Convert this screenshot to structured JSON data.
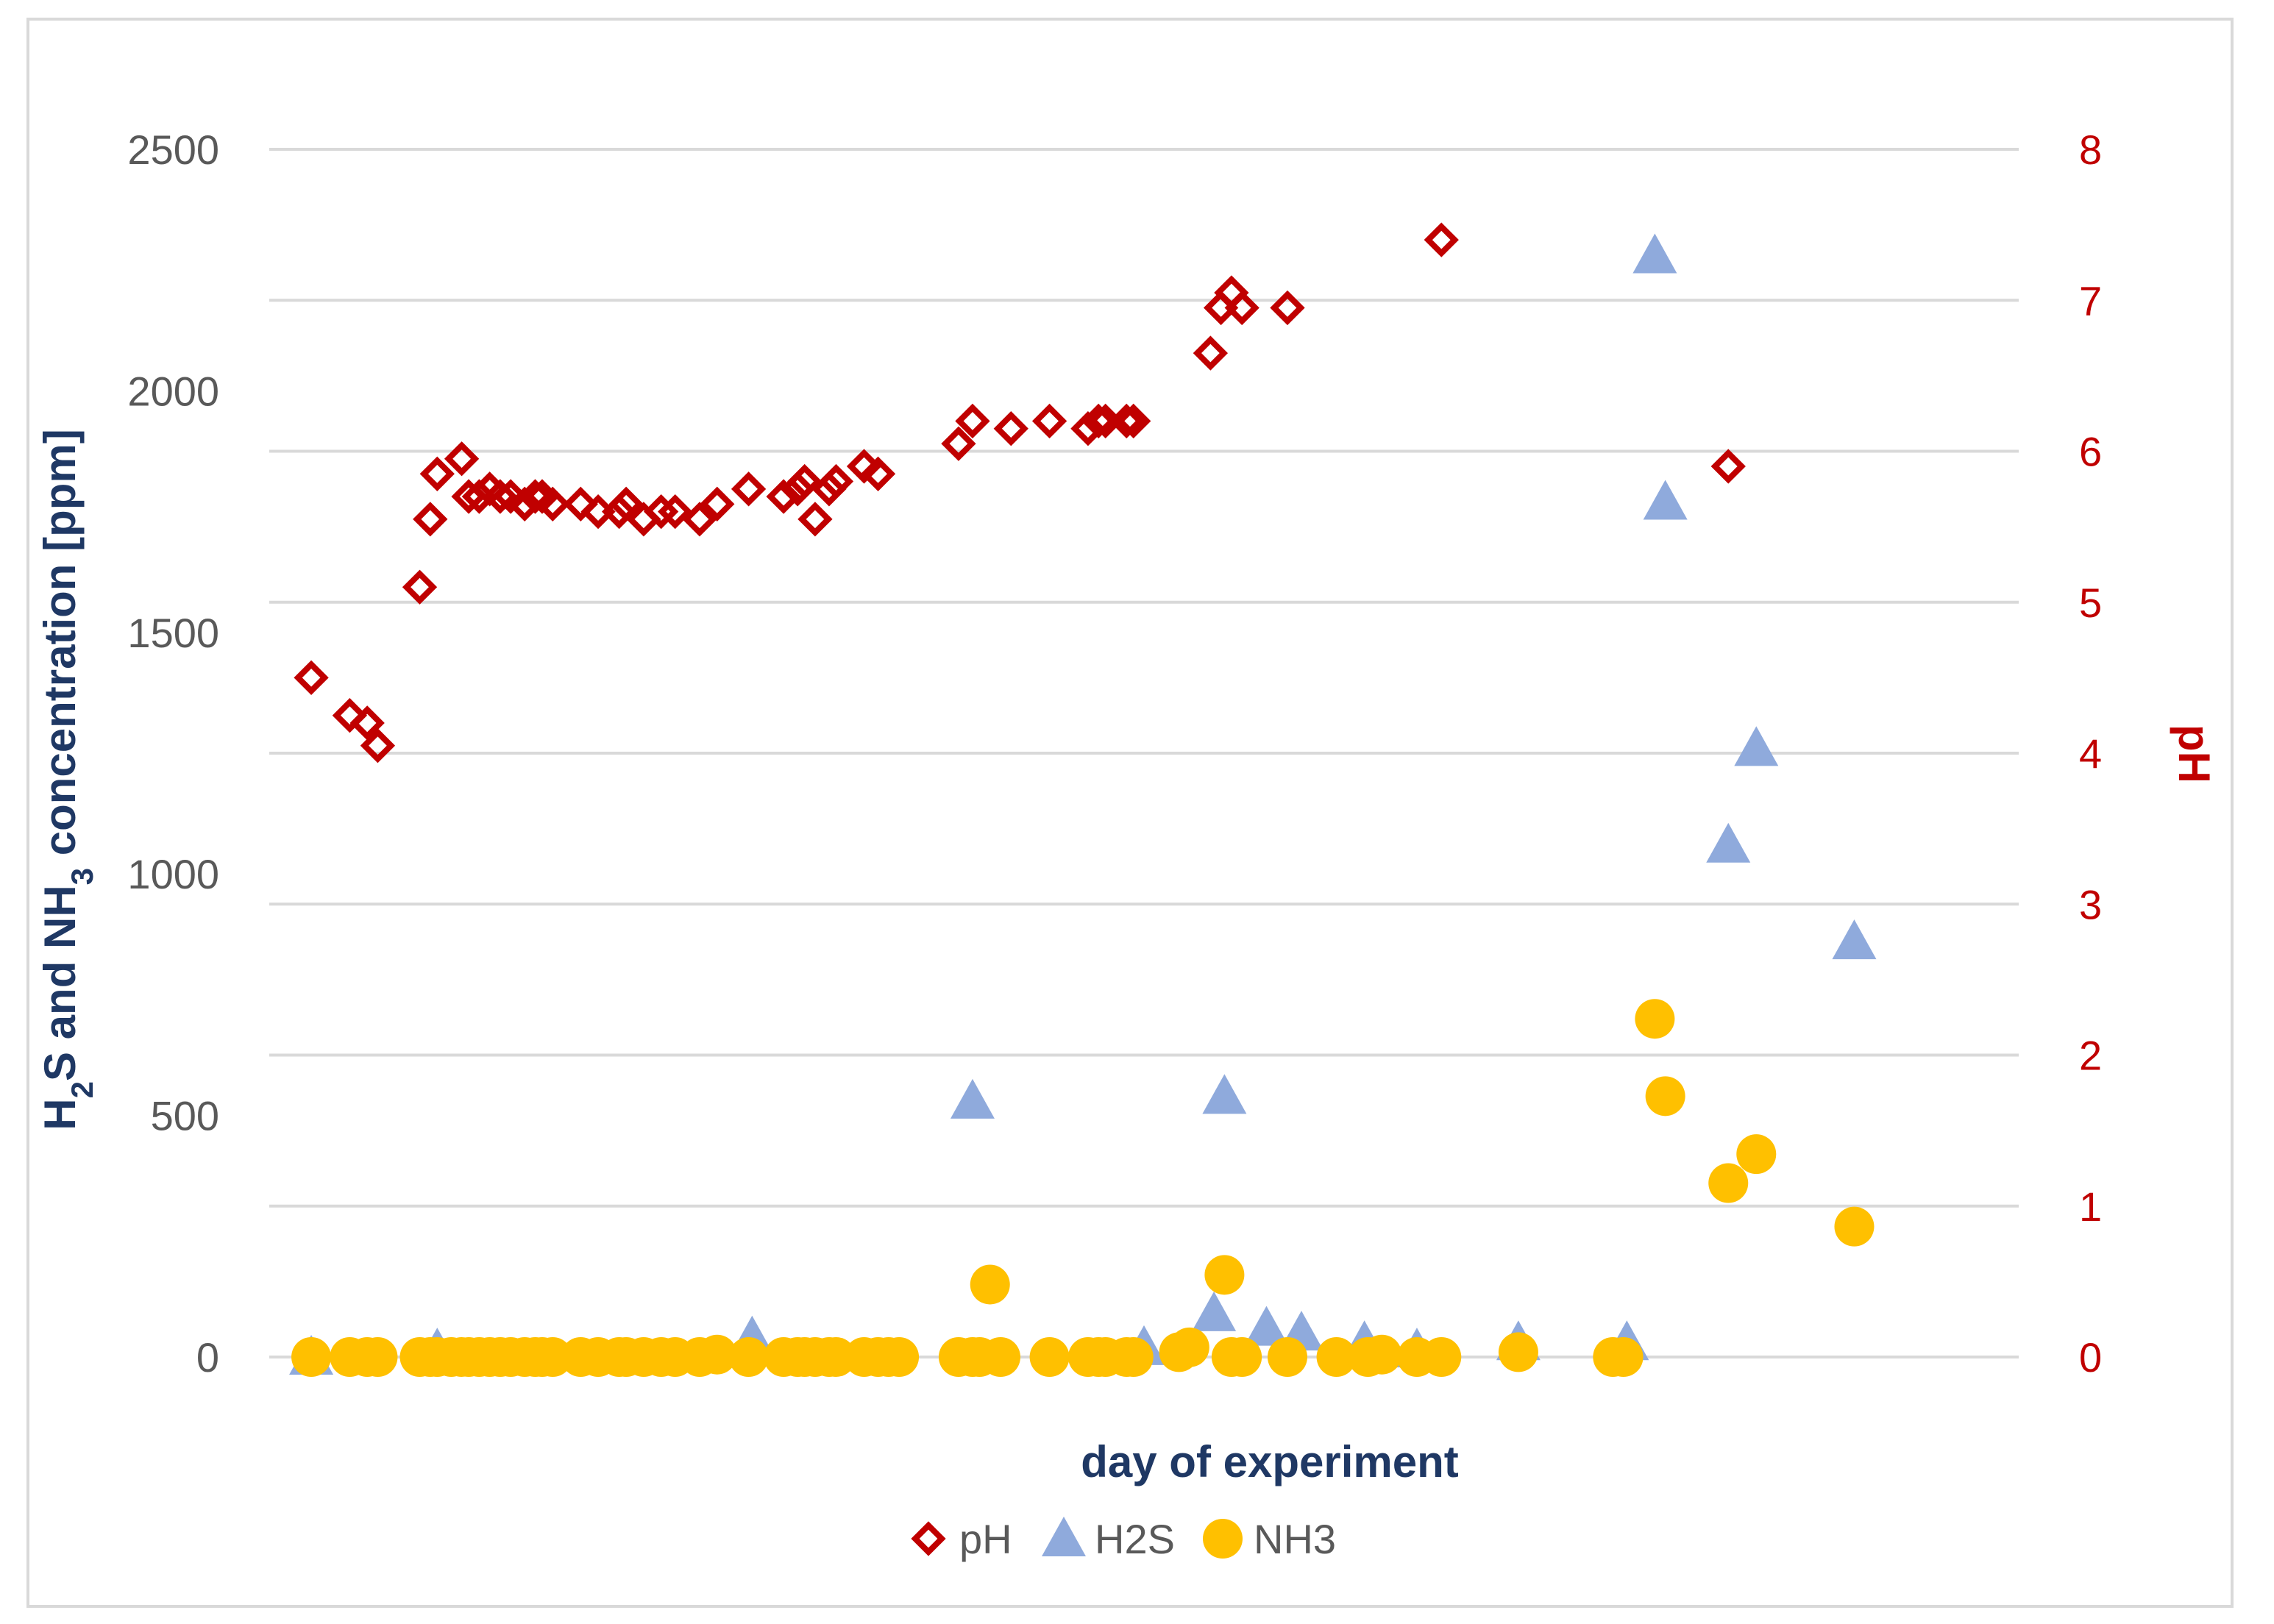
{
  "chart_data": {
    "type": "scatter",
    "title": "",
    "xlabel": "day of experiment",
    "ylabel_left": "H2S and NH3 concentration [ppm]",
    "ylabel_left_parts": {
      "a": "H",
      "a_sub": "2",
      "b": "S and NH",
      "b_sub": "3",
      "c": " concentration [ppm]"
    },
    "ylabel_right": "pH",
    "ylim_left": [
      0,
      2500
    ],
    "ylim_right": [
      0,
      8
    ],
    "yticks_left": [
      "0",
      "500",
      "1000",
      "1500",
      "2000",
      "2500"
    ],
    "yticks_right": [
      "0",
      "1",
      "2",
      "3",
      "4",
      "5",
      "6",
      "7",
      "8"
    ],
    "xlim": [
      0,
      100
    ],
    "grid": true,
    "legend_position": "bottom",
    "colors": {
      "pH": "#c00000",
      "H2S": "#8faadc",
      "NH3": "#ffc000",
      "grid": "#d9d9d9"
    },
    "series": [
      {
        "name": "pH",
        "axis": "right",
        "marker": "diamond-open",
        "x": [
          2.4,
          4.6,
          5.6,
          6.2,
          8.6,
          9.2,
          9.6,
          11.0,
          11.4,
          12.0,
          12.6,
          13.2,
          13.8,
          14.6,
          15.2,
          15.6,
          16.2,
          17.8,
          18.8,
          20.0,
          20.4,
          21.4,
          22.4,
          23.2,
          24.6,
          25.6,
          27.4,
          29.4,
          30.2,
          30.6,
          31.2,
          32.0,
          32.4,
          34.0,
          34.8,
          39.4,
          40.2,
          42.4,
          44.6,
          46.8,
          47.4,
          47.8,
          49.0,
          49.4,
          53.8,
          54.4,
          55.0,
          55.6,
          58.2,
          67.0,
          83.4
        ],
        "y": [
          4.5,
          4.25,
          4.2,
          4.05,
          5.1,
          5.55,
          5.85,
          5.95,
          5.7,
          5.7,
          5.75,
          5.7,
          5.7,
          5.65,
          5.7,
          5.7,
          5.65,
          5.65,
          5.6,
          5.6,
          5.65,
          5.55,
          5.6,
          5.6,
          5.55,
          5.65,
          5.75,
          5.7,
          5.75,
          5.8,
          5.55,
          5.75,
          5.8,
          5.9,
          5.85,
          6.05,
          6.2,
          6.15,
          6.2,
          6.15,
          6.2,
          6.2,
          6.2,
          6.2,
          6.65,
          6.95,
          7.05,
          6.95,
          6.95,
          7.4,
          5.9
        ]
      },
      {
        "name": "H2S",
        "axis": "left",
        "marker": "triangle",
        "x": [
          2.4,
          9.6,
          27.6,
          40.2,
          50.0,
          54.6,
          54.0,
          57.0,
          59.0,
          62.6,
          65.6,
          71.4,
          77.6,
          79.2,
          79.8,
          83.4,
          85.0,
          90.6
        ],
        "y": [
          0,
          15,
          40,
          530,
          20,
          540,
          90,
          60,
          50,
          30,
          15,
          30,
          30,
          2280,
          1770,
          1060,
          1260,
          860
        ]
      },
      {
        "name": "NH3",
        "axis": "left",
        "marker": "circle",
        "x": [
          2.4,
          4.6,
          5.6,
          6.2,
          8.6,
          9.2,
          9.6,
          10.4,
          11.0,
          11.4,
          12.0,
          12.6,
          13.2,
          13.8,
          14.6,
          15.2,
          15.6,
          16.2,
          17.8,
          18.8,
          20.0,
          20.4,
          21.4,
          22.4,
          23.2,
          24.6,
          25.6,
          27.4,
          29.4,
          30.2,
          30.6,
          31.2,
          32.0,
          32.4,
          34.0,
          34.8,
          35.4,
          36.0,
          39.4,
          40.2,
          40.6,
          41.2,
          41.8,
          44.6,
          46.8,
          47.4,
          47.8,
          49.0,
          49.4,
          52.0,
          52.6,
          54.6,
          55.0,
          55.6,
          58.2,
          61.0,
          62.8,
          63.6,
          65.6,
          67.0,
          71.4,
          76.8,
          77.4,
          79.2,
          79.8,
          83.4,
          85.0,
          90.6
        ],
        "y": [
          0,
          0,
          0,
          0,
          0,
          0,
          0,
          0,
          0,
          0,
          0,
          0,
          0,
          0,
          0,
          0,
          0,
          0,
          0,
          0,
          0,
          0,
          0,
          0,
          0,
          0,
          5,
          0,
          0,
          0,
          0,
          0,
          0,
          0,
          0,
          0,
          0,
          0,
          0,
          0,
          0,
          150,
          0,
          0,
          0,
          0,
          0,
          0,
          0,
          10,
          20,
          170,
          0,
          0,
          0,
          0,
          0,
          5,
          0,
          0,
          10,
          0,
          0,
          700,
          540,
          360,
          420,
          270
        ]
      }
    ]
  }
}
